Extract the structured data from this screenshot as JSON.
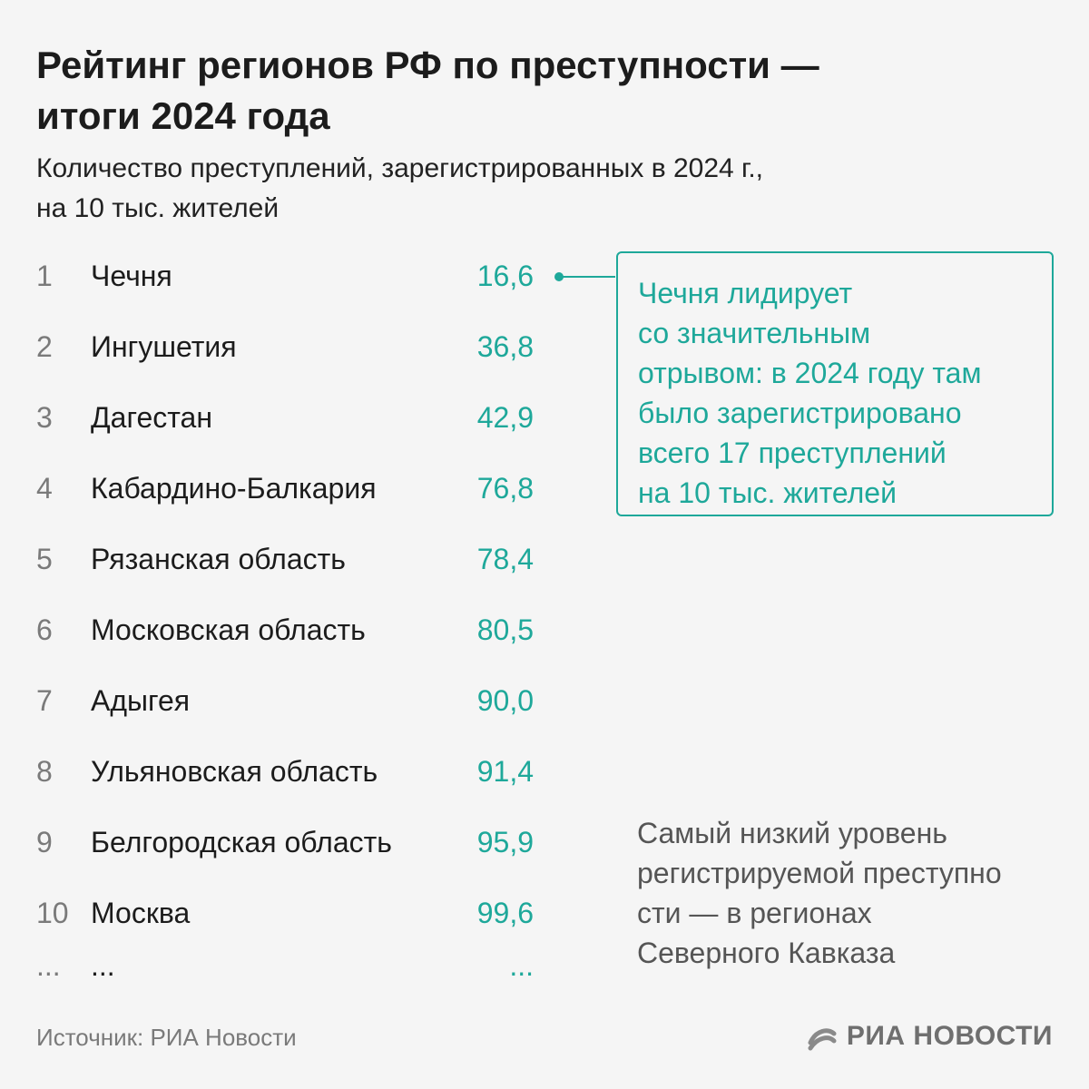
{
  "header": {
    "title_line1": "Рейтинг регионов РФ по преступности —",
    "title_line2": "итоги 2024 года",
    "subtitle_line1": "Количество преступлений, зарегистрированных в 2024 г.,",
    "subtitle_line2": "на 10 тыс. жителей"
  },
  "chart_data": {
    "type": "table",
    "title": "Рейтинг регионов РФ по преступности — итоги 2024 года",
    "subtitle": "Количество преступлений, зарегистрированных в 2024 г., на 10 тыс. жителей",
    "columns": [
      "rank",
      "region",
      "value"
    ],
    "rows": [
      {
        "rank": "1",
        "region": "Чечня",
        "value": "16,6"
      },
      {
        "rank": "2",
        "region": "Ингушетия",
        "value": "36,8"
      },
      {
        "rank": "3",
        "region": "Дагестан",
        "value": "42,9"
      },
      {
        "rank": "4",
        "region": "Кабардино-Балкария",
        "value": "76,8"
      },
      {
        "rank": "5",
        "region": "Рязанская область",
        "value": "78,4"
      },
      {
        "rank": "6",
        "region": "Московская область",
        "value": "80,5"
      },
      {
        "rank": "7",
        "region": "Адыгея",
        "value": "90,0"
      },
      {
        "rank": "8",
        "region": "Ульяновская область",
        "value": "91,4"
      },
      {
        "rank": "9",
        "region": "Белгородская область",
        "value": "95,9"
      },
      {
        "rank": "10",
        "region": "Москва",
        "value": "99,6"
      },
      {
        "rank": "...",
        "region": "...",
        "value": "..."
      }
    ]
  },
  "callout": {
    "lines": [
      "Чечня лидирует",
      "со значительным",
      "отрывом: в 2024 году там",
      "было зарегистрировано",
      "всего 17 преступлений",
      "на 10 тыс. жителей"
    ]
  },
  "note": {
    "lines": [
      "Самый низкий уровень",
      "регистрируемой преступно",
      "сти — в регионах",
      "Северного Кавказа"
    ]
  },
  "footer": {
    "source": "Источник: РИА Новости",
    "logo_text": "РИА НОВОСТИ"
  },
  "colors": {
    "accent": "#1ea89a",
    "background": "#f5f5f5",
    "text": "#1c1c1c",
    "muted": "#7a7a7a"
  }
}
